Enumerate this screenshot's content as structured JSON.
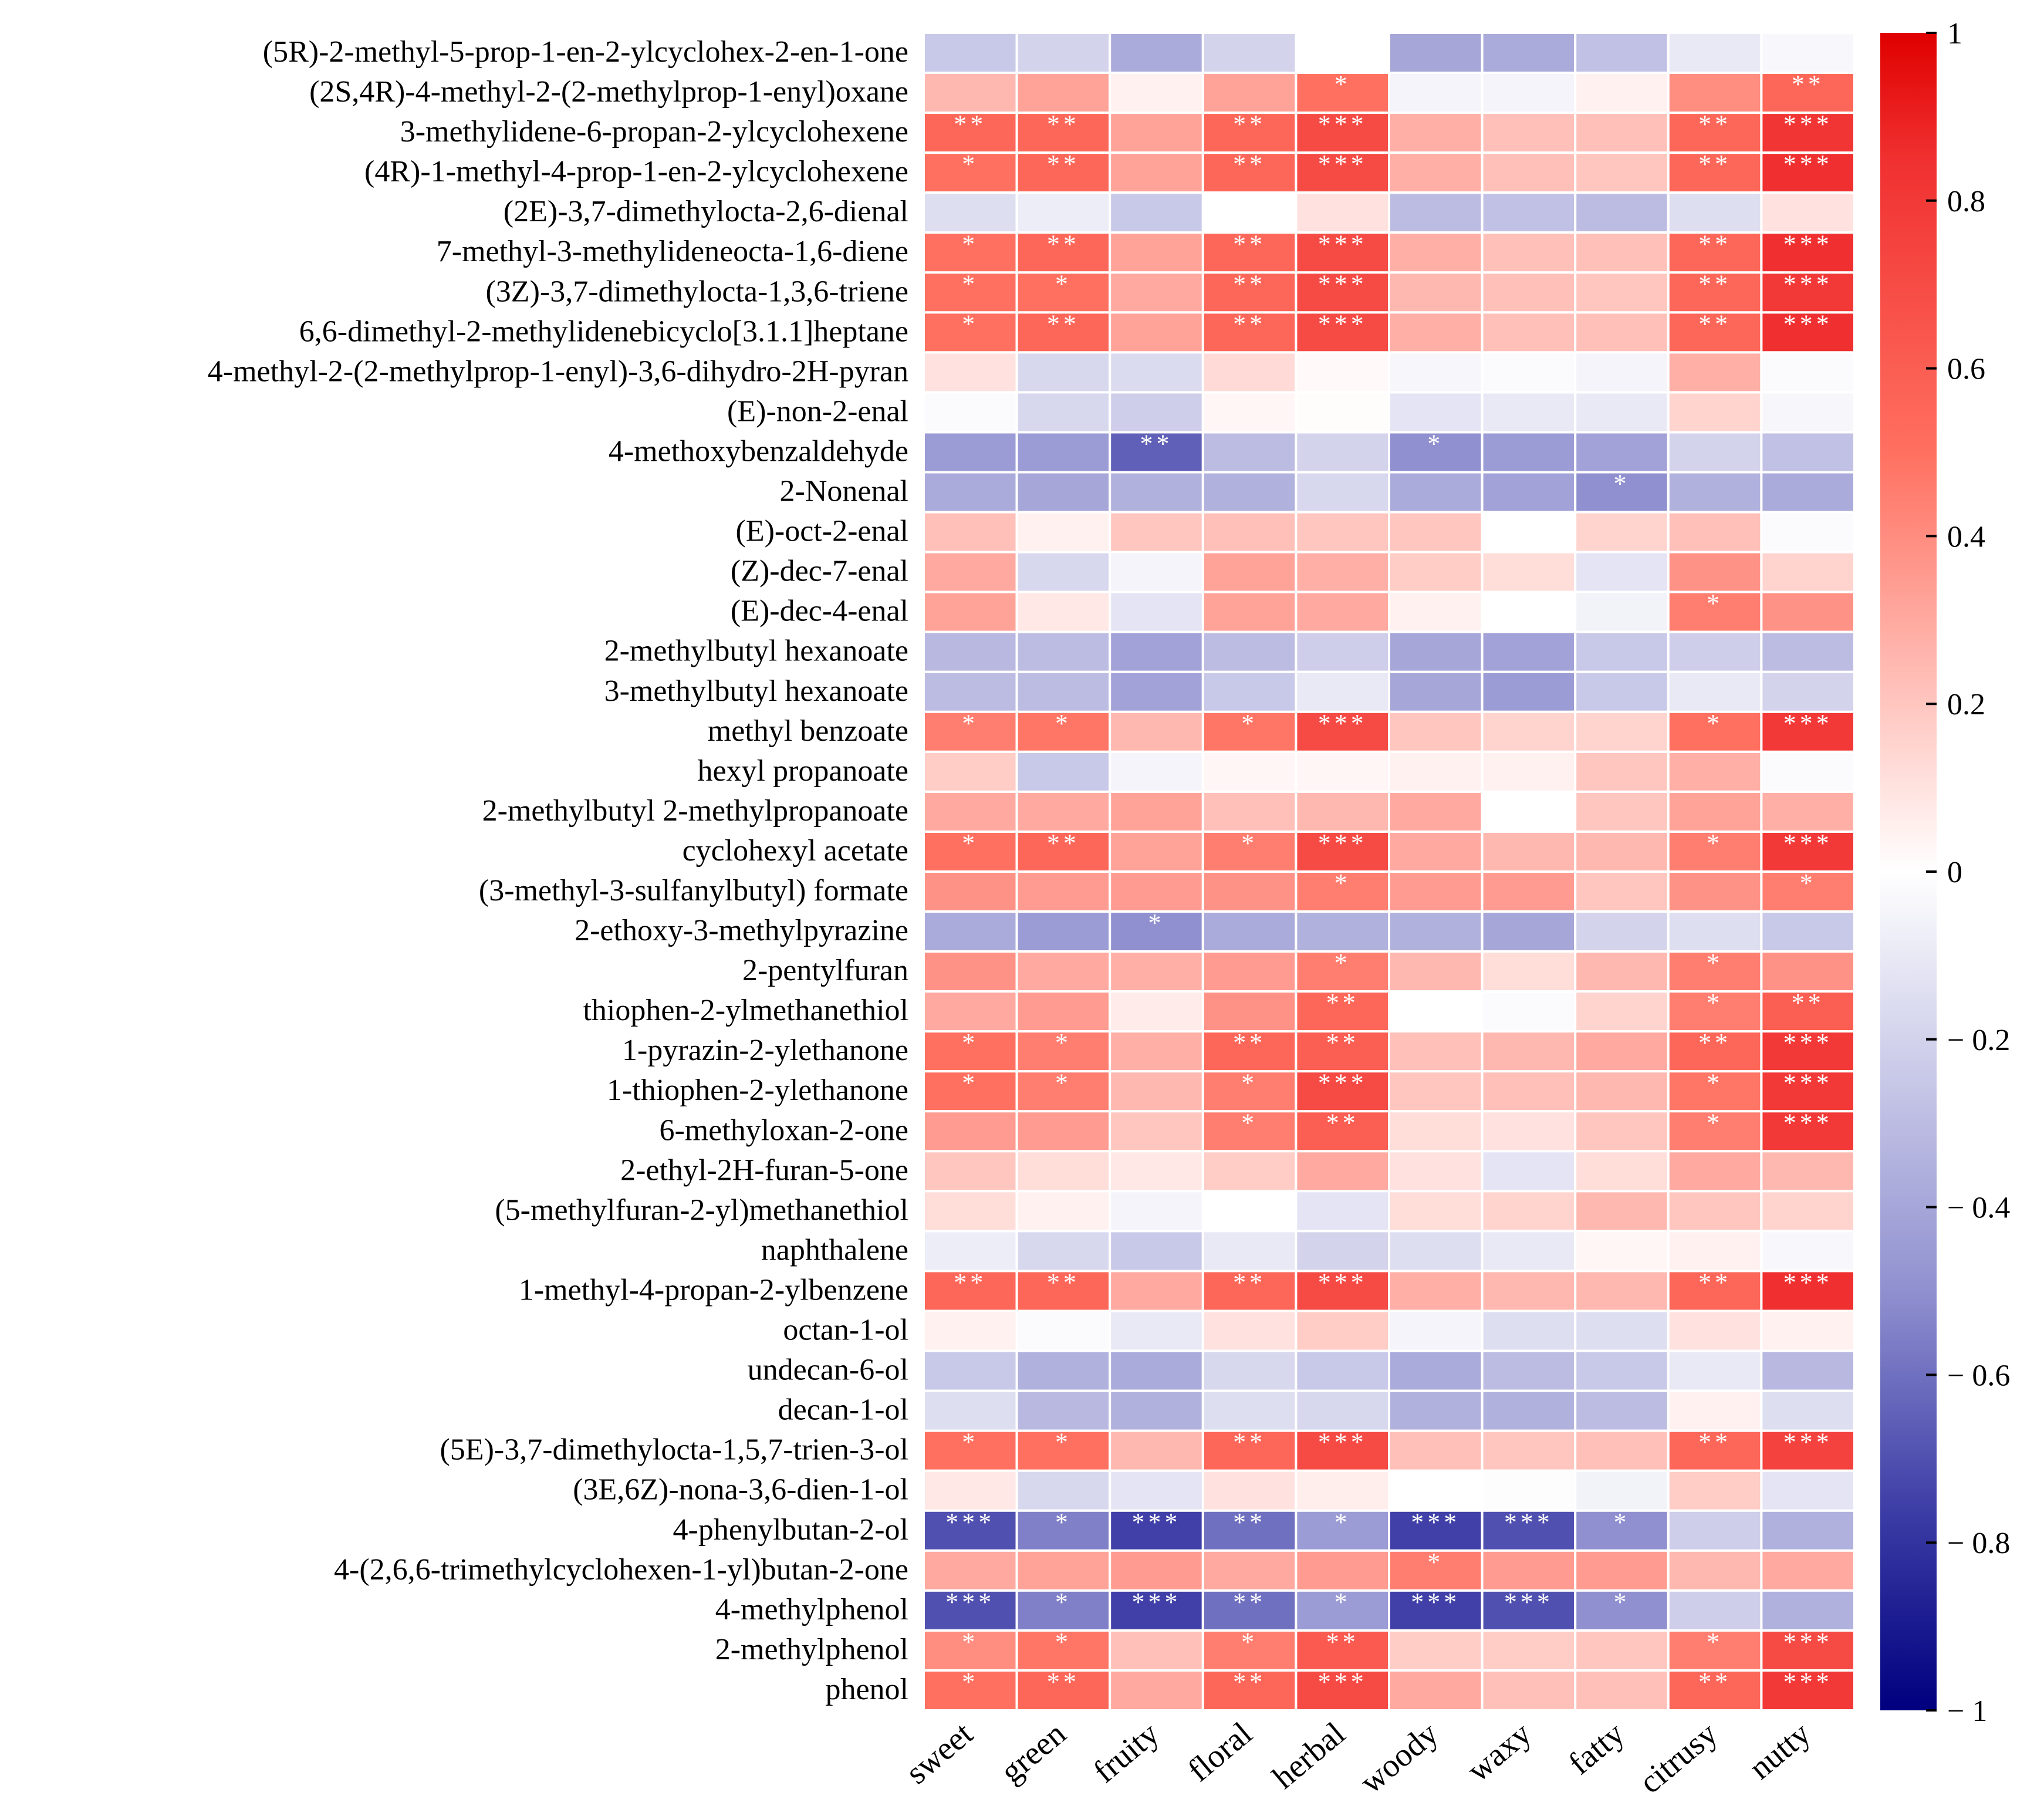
{
  "chart_data": {
    "type": "heatmap",
    "title": "",
    "xlabel": "",
    "ylabel": "",
    "columns": [
      "sweet",
      "green",
      "fruity",
      "floral",
      "herbal",
      "woody",
      "waxy",
      "fatty",
      "citrusy",
      "nutty"
    ],
    "rows": [
      "(5R)-2-methyl-5-prop-1-en-2-ylcyclohex-2-en-1-one",
      "(2S,4R)-4-methyl-2-(2-methylprop-1-enyl)oxane",
      "3-methylidene-6-propan-2-ylcyclohexene",
      "(4R)-1-methyl-4-prop-1-en-2-ylcyclohexene",
      "(2E)-3,7-dimethylocta-2,6-dienal",
      "7-methyl-3-methylideneocta-1,6-diene",
      "(3Z)-3,7-dimethylocta-1,3,6-triene",
      "6,6-dimethyl-2-methylidenebicyclo[3.1.1]heptane",
      "4-methyl-2-(2-methylprop-1-enyl)-3,6-dihydro-2H-pyran",
      "(E)-non-2-enal",
      "4-methoxybenzaldehyde",
      "2-Nonenal",
      "(E)-oct-2-enal",
      "(Z)-dec-7-enal",
      "(E)-dec-4-enal",
      "2-methylbutyl hexanoate",
      "3-methylbutyl hexanoate",
      "methyl benzoate",
      "hexyl propanoate",
      "2-methylbutyl 2-methylpropanoate",
      "cyclohexyl acetate",
      "(3-methyl-3-sulfanylbutyl) formate",
      "2-ethoxy-3-methylpyrazine",
      "2-pentylfuran",
      "thiophen-2-ylmethanethiol",
      "1-pyrazin-2-ylethanone",
      "1-thiophen-2-ylethanone",
      "6-methyloxan-2-one",
      "2-ethyl-2H-furan-5-one",
      "(5-methylfuran-2-yl)methanethiol",
      "naphthalene",
      "1-methyl-4-propan-2-ylbenzene",
      "octan-1-ol",
      "undecan-6-ol",
      "decan-1-ol",
      "(5E)-3,7-dimethylocta-1,5,7-trien-3-ol",
      "(3E,6Z)-nona-3,6-dien-1-ol",
      "4-phenylbutan-2-ol",
      "4-(2,6,6-trimethylcyclohexen-1-yl)butan-2-one",
      "4-methylphenol",
      "2-methylphenol",
      "phenol"
    ],
    "values": [
      [
        -0.25,
        -0.2,
        -0.38,
        -0.2,
        0,
        -0.4,
        -0.38,
        -0.28,
        -0.1,
        -0.03
      ],
      [
        0.25,
        0.32,
        0.05,
        0.32,
        0.5,
        -0.05,
        -0.05,
        0.05,
        0.4,
        0.55
      ],
      [
        0.55,
        0.55,
        0.32,
        0.55,
        0.7,
        0.28,
        0.22,
        0.22,
        0.55,
        0.82
      ],
      [
        0.5,
        0.55,
        0.32,
        0.55,
        0.7,
        0.28,
        0.22,
        0.2,
        0.55,
        0.85
      ],
      [
        -0.15,
        -0.08,
        -0.25,
        0,
        0.1,
        -0.3,
        -0.28,
        -0.3,
        -0.15,
        0.1
      ],
      [
        0.5,
        0.55,
        0.32,
        0.55,
        0.7,
        0.28,
        0.22,
        0.22,
        0.55,
        0.85
      ],
      [
        0.5,
        0.5,
        0.3,
        0.55,
        0.7,
        0.25,
        0.22,
        0.2,
        0.55,
        0.8
      ],
      [
        0.5,
        0.55,
        0.32,
        0.55,
        0.7,
        0.28,
        0.22,
        0.22,
        0.55,
        0.85
      ],
      [
        0.1,
        -0.18,
        -0.16,
        0.13,
        0.02,
        -0.04,
        -0.02,
        -0.05,
        0.28,
        -0.02
      ],
      [
        -0.02,
        -0.18,
        -0.22,
        0.03,
        0.01,
        -0.12,
        -0.1,
        -0.1,
        0.15,
        -0.04
      ],
      [
        -0.45,
        -0.45,
        -0.65,
        -0.3,
        -0.2,
        -0.5,
        -0.45,
        -0.42,
        -0.2,
        -0.28
      ],
      [
        -0.38,
        -0.4,
        -0.35,
        -0.35,
        -0.18,
        -0.38,
        -0.42,
        -0.5,
        -0.35,
        -0.38
      ],
      [
        0.22,
        0.05,
        0.2,
        0.22,
        0.2,
        0.2,
        0,
        0.15,
        0.22,
        -0.02
      ],
      [
        0.3,
        -0.18,
        -0.05,
        0.32,
        0.28,
        0.18,
        0.12,
        -0.12,
        0.38,
        0.15
      ],
      [
        0.32,
        0.08,
        -0.12,
        0.32,
        0.3,
        0.05,
        0,
        -0.06,
        0.45,
        0.38
      ],
      [
        -0.32,
        -0.3,
        -0.42,
        -0.3,
        -0.22,
        -0.4,
        -0.42,
        -0.25,
        -0.22,
        -0.3
      ],
      [
        -0.3,
        -0.3,
        -0.42,
        -0.25,
        -0.1,
        -0.4,
        -0.45,
        -0.25,
        -0.1,
        -0.2
      ],
      [
        0.45,
        0.48,
        0.25,
        0.48,
        0.7,
        0.2,
        0.15,
        0.15,
        0.5,
        0.8
      ],
      [
        0.18,
        -0.25,
        -0.05,
        0.03,
        0.03,
        0.05,
        0.05,
        0.2,
        0.28,
        -0.02
      ],
      [
        0.3,
        0.3,
        0.32,
        0.22,
        0.25,
        0.3,
        0,
        0.2,
        0.32,
        0.28
      ],
      [
        0.5,
        0.55,
        0.32,
        0.45,
        0.7,
        0.3,
        0.25,
        0.25,
        0.45,
        0.8
      ],
      [
        0.38,
        0.35,
        0.35,
        0.38,
        0.45,
        0.35,
        0.35,
        0.2,
        0.38,
        0.45
      ],
      [
        -0.38,
        -0.45,
        -0.5,
        -0.38,
        -0.35,
        -0.35,
        -0.4,
        -0.2,
        -0.15,
        -0.25
      ],
      [
        0.38,
        0.3,
        0.28,
        0.35,
        0.45,
        0.25,
        0.12,
        0.25,
        0.45,
        0.38
      ],
      [
        0.3,
        0.35,
        0.07,
        0.38,
        0.55,
        0,
        -0.02,
        0.15,
        0.45,
        0.6
      ],
      [
        0.5,
        0.45,
        0.28,
        0.55,
        0.6,
        0.22,
        0.25,
        0.3,
        0.55,
        0.8
      ],
      [
        0.5,
        0.45,
        0.25,
        0.45,
        0.7,
        0.2,
        0.22,
        0.25,
        0.48,
        0.8
      ],
      [
        0.35,
        0.35,
        0.2,
        0.45,
        0.6,
        0.12,
        0.1,
        0.2,
        0.45,
        0.8
      ],
      [
        0.2,
        0.12,
        0.08,
        0.18,
        0.3,
        0.1,
        -0.12,
        0.12,
        0.3,
        0.25
      ],
      [
        0.12,
        0.05,
        -0.05,
        0,
        -0.12,
        0.12,
        0.15,
        0.25,
        0.2,
        0.15
      ],
      [
        -0.08,
        -0.18,
        -0.25,
        -0.1,
        -0.2,
        -0.15,
        -0.1,
        0.03,
        0.05,
        -0.03
      ],
      [
        0.55,
        0.55,
        0.3,
        0.55,
        0.7,
        0.28,
        0.25,
        0.25,
        0.55,
        0.85
      ],
      [
        0.05,
        -0.02,
        -0.1,
        0.1,
        0.18,
        -0.05,
        -0.15,
        -0.15,
        0.1,
        0.05
      ],
      [
        -0.25,
        -0.35,
        -0.38,
        -0.18,
        -0.25,
        -0.38,
        -0.3,
        -0.25,
        -0.1,
        -0.32
      ],
      [
        -0.15,
        -0.32,
        -0.35,
        -0.15,
        -0.18,
        -0.35,
        -0.35,
        -0.3,
        0.05,
        -0.15
      ],
      [
        0.5,
        0.5,
        0.25,
        0.55,
        0.7,
        0.22,
        0.2,
        0.22,
        0.55,
        0.75
      ],
      [
        0.08,
        -0.18,
        -0.12,
        0.1,
        0.06,
        0,
        -0.01,
        -0.06,
        0.18,
        -0.12
      ],
      [
        -0.7,
        -0.55,
        -0.75,
        -0.6,
        -0.45,
        -0.75,
        -0.7,
        -0.5,
        -0.22,
        -0.35
      ],
      [
        0.3,
        0.32,
        0.35,
        0.3,
        0.35,
        0.45,
        0.35,
        0.35,
        0.25,
        0.3
      ],
      [
        -0.7,
        -0.55,
        -0.75,
        -0.6,
        -0.45,
        -0.75,
        -0.7,
        -0.5,
        -0.22,
        -0.35
      ],
      [
        0.4,
        0.48,
        0.22,
        0.45,
        0.62,
        0.18,
        0.18,
        0.2,
        0.45,
        0.7
      ],
      [
        0.5,
        0.55,
        0.3,
        0.55,
        0.7,
        0.3,
        0.22,
        0.22,
        0.55,
        0.8
      ]
    ],
    "significance": [
      [
        "",
        "",
        "",
        "",
        "",
        "",
        "",
        "",
        "",
        ""
      ],
      [
        "",
        "",
        "",
        "",
        "*",
        "",
        "",
        "",
        "",
        "**"
      ],
      [
        "**",
        "**",
        "",
        "**",
        "***",
        "",
        "",
        "",
        "**",
        "***"
      ],
      [
        "*",
        "**",
        "",
        "**",
        "***",
        "",
        "",
        "",
        "**",
        "***"
      ],
      [
        "",
        "",
        "",
        "",
        "",
        "",
        "",
        "",
        "",
        ""
      ],
      [
        "*",
        "**",
        "",
        "**",
        "***",
        "",
        "",
        "",
        "**",
        "***"
      ],
      [
        "*",
        "*",
        "",
        "**",
        "***",
        "",
        "",
        "",
        "**",
        "***"
      ],
      [
        "*",
        "**",
        "",
        "**",
        "***",
        "",
        "",
        "",
        "**",
        "***"
      ],
      [
        "",
        "",
        "",
        "",
        "",
        "",
        "",
        "",
        "",
        ""
      ],
      [
        "",
        "",
        "",
        "",
        "",
        "",
        "",
        "",
        "",
        ""
      ],
      [
        "",
        "",
        "**",
        "",
        "",
        "*",
        "",
        "",
        "",
        ""
      ],
      [
        "",
        "",
        "",
        "",
        "",
        "",
        "",
        "*",
        "",
        ""
      ],
      [
        "",
        "",
        "",
        "",
        "",
        "",
        "",
        "",
        "",
        ""
      ],
      [
        "",
        "",
        "",
        "",
        "",
        "",
        "",
        "",
        "",
        ""
      ],
      [
        "",
        "",
        "",
        "",
        "",
        "",
        "",
        "",
        "*",
        ""
      ],
      [
        "",
        "",
        "",
        "",
        "",
        "",
        "",
        "",
        "",
        ""
      ],
      [
        "",
        "",
        "",
        "",
        "",
        "",
        "",
        "",
        "",
        ""
      ],
      [
        "*",
        "*",
        "",
        "*",
        "***",
        "",
        "",
        "",
        "*",
        "***"
      ],
      [
        "",
        "",
        "",
        "",
        "",
        "",
        "",
        "",
        "",
        ""
      ],
      [
        "",
        "",
        "",
        "",
        "",
        "",
        "",
        "",
        "",
        ""
      ],
      [
        "*",
        "**",
        "",
        "*",
        "***",
        "",
        "",
        "",
        "*",
        "***"
      ],
      [
        "",
        "",
        "",
        "",
        "*",
        "",
        "",
        "",
        "",
        "*"
      ],
      [
        "",
        "",
        "*",
        "",
        "",
        "",
        "",
        "",
        "",
        ""
      ],
      [
        "",
        "",
        "",
        "",
        "*",
        "",
        "",
        "",
        "*",
        ""
      ],
      [
        "",
        "",
        "",
        "",
        "**",
        "",
        "",
        "",
        "*",
        "**"
      ],
      [
        "*",
        "*",
        "",
        "**",
        "**",
        "",
        "",
        "",
        "**",
        "***"
      ],
      [
        "*",
        "*",
        "",
        "*",
        "***",
        "",
        "",
        "",
        "*",
        "***"
      ],
      [
        "",
        "",
        "",
        "*",
        "**",
        "",
        "",
        "",
        "*",
        "***"
      ],
      [
        "",
        "",
        "",
        "",
        "",
        "",
        "",
        "",
        "",
        ""
      ],
      [
        "",
        "",
        "",
        "",
        "",
        "",
        "",
        "",
        "",
        ""
      ],
      [
        "",
        "",
        "",
        "",
        "",
        "",
        "",
        "",
        "",
        ""
      ],
      [
        "**",
        "**",
        "",
        "**",
        "***",
        "",
        "",
        "",
        "**",
        "***"
      ],
      [
        "",
        "",
        "",
        "",
        "",
        "",
        "",
        "",
        "",
        ""
      ],
      [
        "",
        "",
        "",
        "",
        "",
        "",
        "",
        "",
        "",
        ""
      ],
      [
        "",
        "",
        "",
        "",
        "",
        "",
        "",
        "",
        "",
        ""
      ],
      [
        "*",
        "*",
        "",
        "**",
        "***",
        "",
        "",
        "",
        "**",
        "***"
      ],
      [
        "",
        "",
        "",
        "",
        "",
        "",
        "",
        "",
        "",
        ""
      ],
      [
        "***",
        "*",
        "***",
        "**",
        "*",
        "***",
        "***",
        "*",
        "",
        ""
      ],
      [
        "",
        "",
        "",
        "",
        "",
        "*",
        "",
        "",
        "",
        ""
      ],
      [
        "***",
        "*",
        "***",
        "**",
        "*",
        "***",
        "***",
        "*",
        "",
        ""
      ],
      [
        "*",
        "*",
        "",
        "*",
        "**",
        "",
        "",
        "",
        "*",
        "***"
      ],
      [
        "*",
        "**",
        "",
        "**",
        "***",
        "",
        "",
        "",
        "**",
        "***"
      ]
    ],
    "colorbar": {
      "range": [
        -1,
        1
      ],
      "ticks": [
        1,
        0.8,
        0.6,
        0.4,
        0.2,
        0,
        -0.2,
        -0.4,
        -0.6,
        -0.8,
        -1
      ],
      "tick_labels": [
        "1",
        "0.8",
        "0.6",
        "0.4",
        "0.2",
        "0",
        "− 0.2",
        "− 0.4",
        "− 0.6",
        "− 0.8",
        "− 1"
      ],
      "colors": {
        "high": "#e00000",
        "mid": "#ffffff",
        "low": "#00007f"
      }
    },
    "grid": false,
    "legend": "right"
  }
}
